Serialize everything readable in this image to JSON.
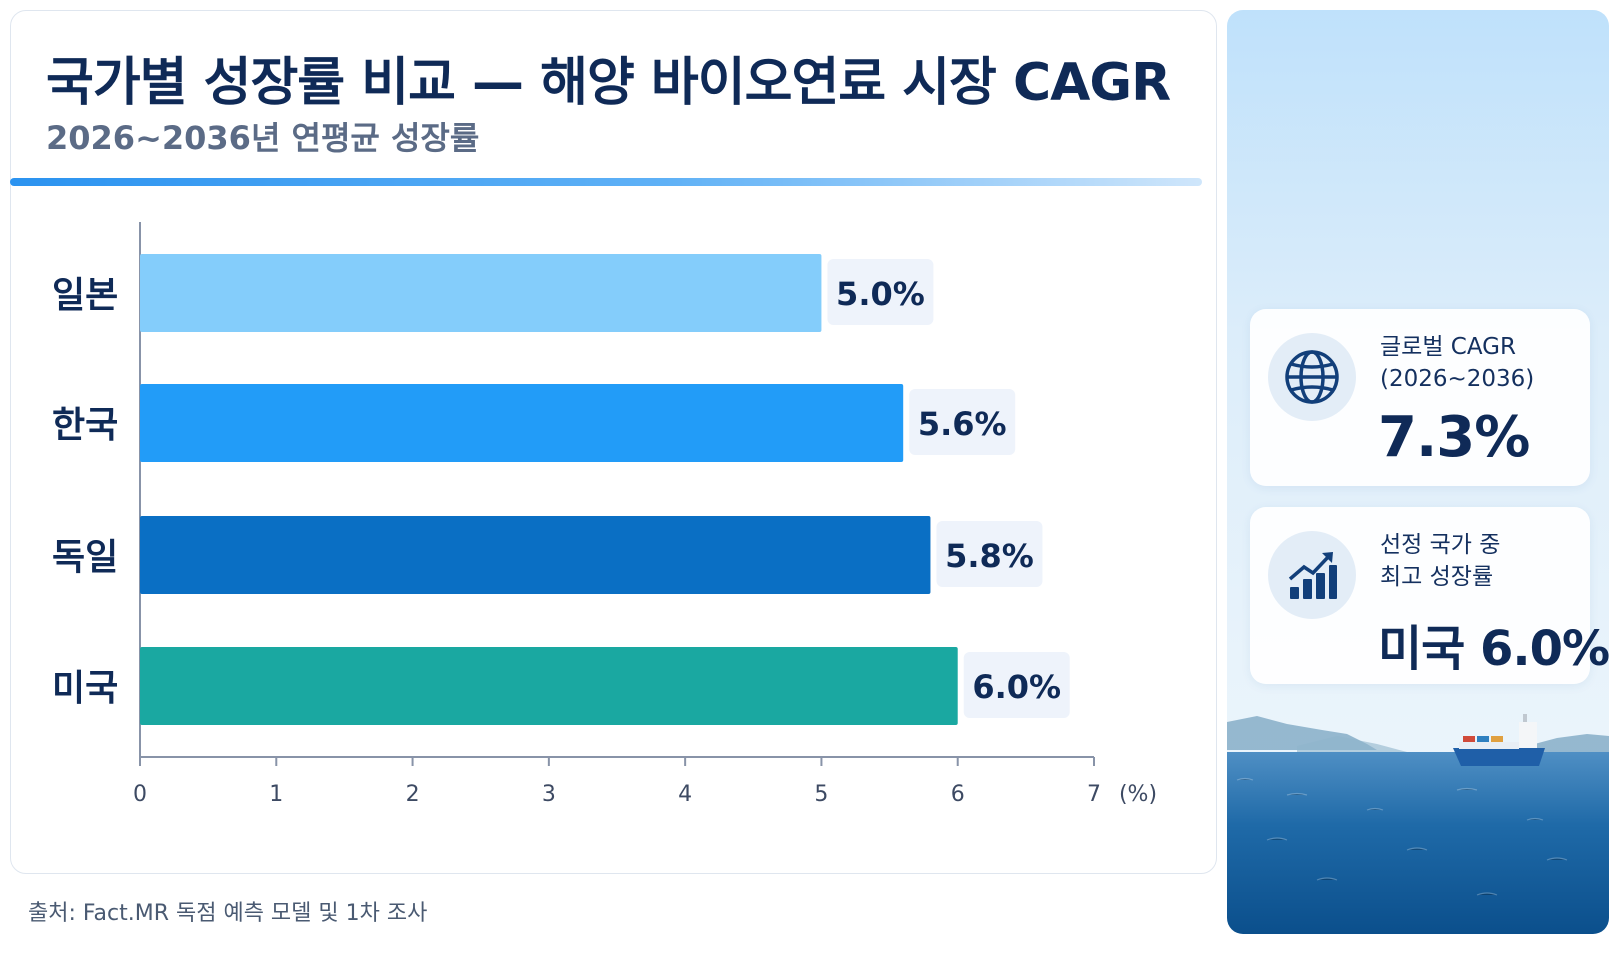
{
  "header": {
    "title": "국가별 성장률 비교 — 해양 바이오연료 시장 CAGR",
    "subtitle": "2026~2036년 연평균 성장률"
  },
  "chart_data": {
    "type": "bar",
    "orientation": "horizontal",
    "categories": [
      "일본",
      "한국",
      "독일",
      "미국"
    ],
    "values": [
      5.0,
      5.6,
      5.8,
      6.0
    ],
    "value_labels": [
      "5.0%",
      "5.6%",
      "5.8%",
      "6.0%"
    ],
    "bar_colors": [
      "#84cdfb",
      "#229cf8",
      "#0a6fc4",
      "#1aa8a1"
    ],
    "xlim": [
      0,
      7
    ],
    "x_ticks": [
      "0",
      "1",
      "2",
      "3",
      "4",
      "5",
      "6",
      "7"
    ],
    "x_unit": "(%)",
    "grid": false
  },
  "source": "출처: Fact.MR 독점 예측 모델 및 1차 조사",
  "side": {
    "cards": [
      {
        "icon": "globe-icon",
        "label_line1": "글로벌 CAGR",
        "label_line2": "(2026~2036)",
        "value": "7.3%"
      },
      {
        "icon": "bar-chart-growth-icon",
        "label_line1": "선정 국가 중",
        "label_line2": "최고 성장률",
        "value": "미국 6.0%"
      }
    ],
    "image": "cargo-ship-on-sea"
  },
  "colors": {
    "title": "#0f2a57",
    "subtitle": "#5b6b86",
    "accent": "#2b93f0",
    "axis": "#8893a8",
    "label_bg": "#eef3fb"
  }
}
